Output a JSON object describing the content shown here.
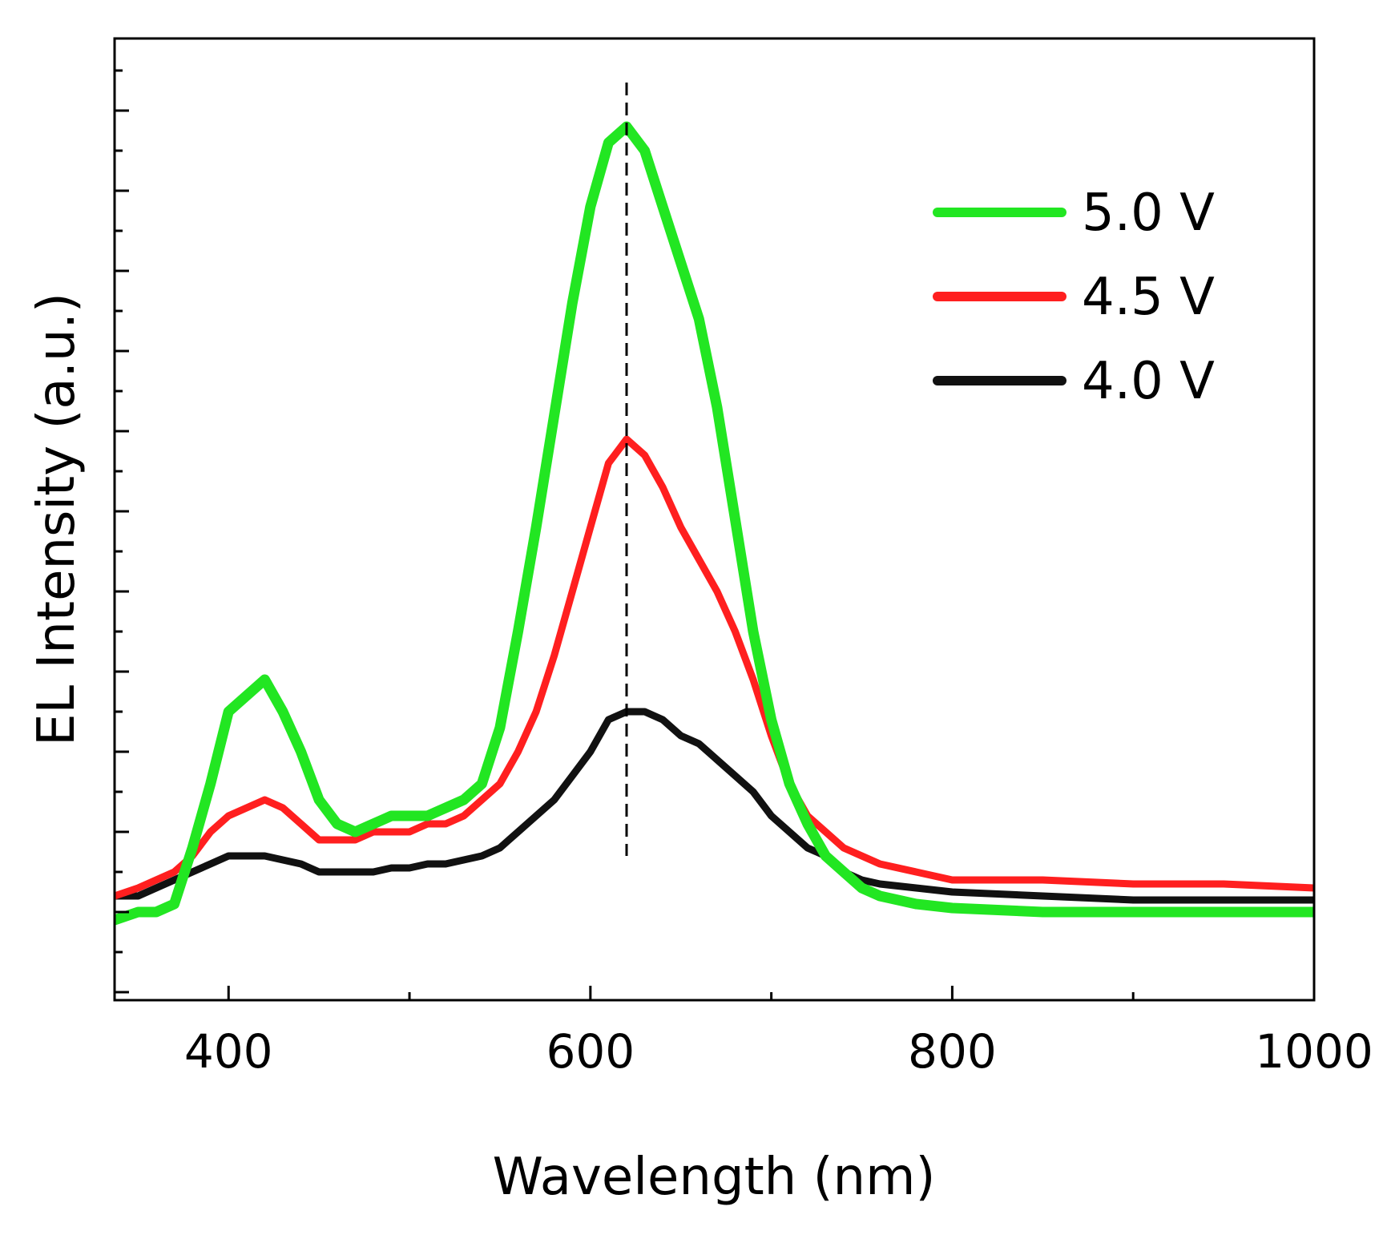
{
  "chart_data": {
    "type": "line",
    "title": "",
    "xlabel": "Wavelength (nm)",
    "ylabel": "EL Intensity (a.u.)",
    "xlim": [
      337,
      1000
    ],
    "ylim": [
      -0.11,
      1.09
    ],
    "x_ticks": [
      400,
      600,
      800,
      1000
    ],
    "y_ticks_labeled": false,
    "grid": false,
    "legend_position": "top-right",
    "reference_line": {
      "x": 620,
      "style": "dashed",
      "color": "#000000"
    },
    "series": [
      {
        "name": "5.0 V",
        "color": "#22e622",
        "x": [
          337,
          350,
          360,
          370,
          380,
          390,
          400,
          410,
          420,
          430,
          440,
          450,
          460,
          470,
          480,
          490,
          500,
          510,
          520,
          530,
          540,
          550,
          560,
          570,
          580,
          590,
          600,
          610,
          620,
          630,
          640,
          650,
          660,
          670,
          680,
          690,
          700,
          710,
          720,
          730,
          740,
          750,
          760,
          780,
          800,
          850,
          900,
          950,
          1000
        ],
        "values": [
          -0.01,
          0.0,
          0.0,
          0.01,
          0.08,
          0.16,
          0.25,
          0.27,
          0.29,
          0.25,
          0.2,
          0.14,
          0.11,
          0.1,
          0.11,
          0.12,
          0.12,
          0.12,
          0.13,
          0.14,
          0.16,
          0.23,
          0.35,
          0.48,
          0.62,
          0.76,
          0.88,
          0.96,
          0.98,
          0.95,
          0.88,
          0.81,
          0.74,
          0.63,
          0.49,
          0.35,
          0.24,
          0.16,
          0.11,
          0.07,
          0.05,
          0.03,
          0.02,
          0.01,
          0.005,
          0.0,
          0.0,
          0.0,
          0.0
        ]
      },
      {
        "name": "4.5 V",
        "color": "#ff1f1f",
        "x": [
          337,
          350,
          360,
          370,
          380,
          390,
          400,
          410,
          420,
          430,
          440,
          450,
          460,
          470,
          480,
          490,
          500,
          510,
          520,
          530,
          540,
          550,
          560,
          570,
          580,
          590,
          600,
          610,
          620,
          630,
          640,
          650,
          660,
          670,
          680,
          690,
          700,
          710,
          720,
          730,
          740,
          750,
          760,
          780,
          800,
          850,
          900,
          950,
          1000
        ],
        "values": [
          0.02,
          0.03,
          0.04,
          0.05,
          0.07,
          0.1,
          0.12,
          0.13,
          0.14,
          0.13,
          0.11,
          0.09,
          0.09,
          0.09,
          0.1,
          0.1,
          0.1,
          0.11,
          0.11,
          0.12,
          0.14,
          0.16,
          0.2,
          0.25,
          0.32,
          0.4,
          0.48,
          0.56,
          0.59,
          0.57,
          0.53,
          0.48,
          0.44,
          0.4,
          0.35,
          0.29,
          0.22,
          0.16,
          0.12,
          0.1,
          0.08,
          0.07,
          0.06,
          0.05,
          0.04,
          0.04,
          0.035,
          0.035,
          0.03
        ]
      },
      {
        "name": "4.0 V",
        "color": "#111111",
        "x": [
          337,
          350,
          360,
          370,
          380,
          390,
          400,
          410,
          420,
          430,
          440,
          450,
          460,
          470,
          480,
          490,
          500,
          510,
          520,
          530,
          540,
          550,
          560,
          570,
          580,
          590,
          600,
          610,
          620,
          630,
          640,
          650,
          660,
          670,
          680,
          690,
          700,
          710,
          720,
          730,
          740,
          750,
          760,
          780,
          800,
          850,
          900,
          950,
          1000
        ],
        "values": [
          0.02,
          0.02,
          0.03,
          0.04,
          0.05,
          0.06,
          0.07,
          0.07,
          0.07,
          0.065,
          0.06,
          0.05,
          0.05,
          0.05,
          0.05,
          0.055,
          0.055,
          0.06,
          0.06,
          0.065,
          0.07,
          0.08,
          0.1,
          0.12,
          0.14,
          0.17,
          0.2,
          0.24,
          0.25,
          0.25,
          0.24,
          0.22,
          0.21,
          0.19,
          0.17,
          0.15,
          0.12,
          0.1,
          0.08,
          0.07,
          0.05,
          0.04,
          0.035,
          0.03,
          0.025,
          0.02,
          0.015,
          0.015,
          0.015
        ]
      }
    ]
  }
}
